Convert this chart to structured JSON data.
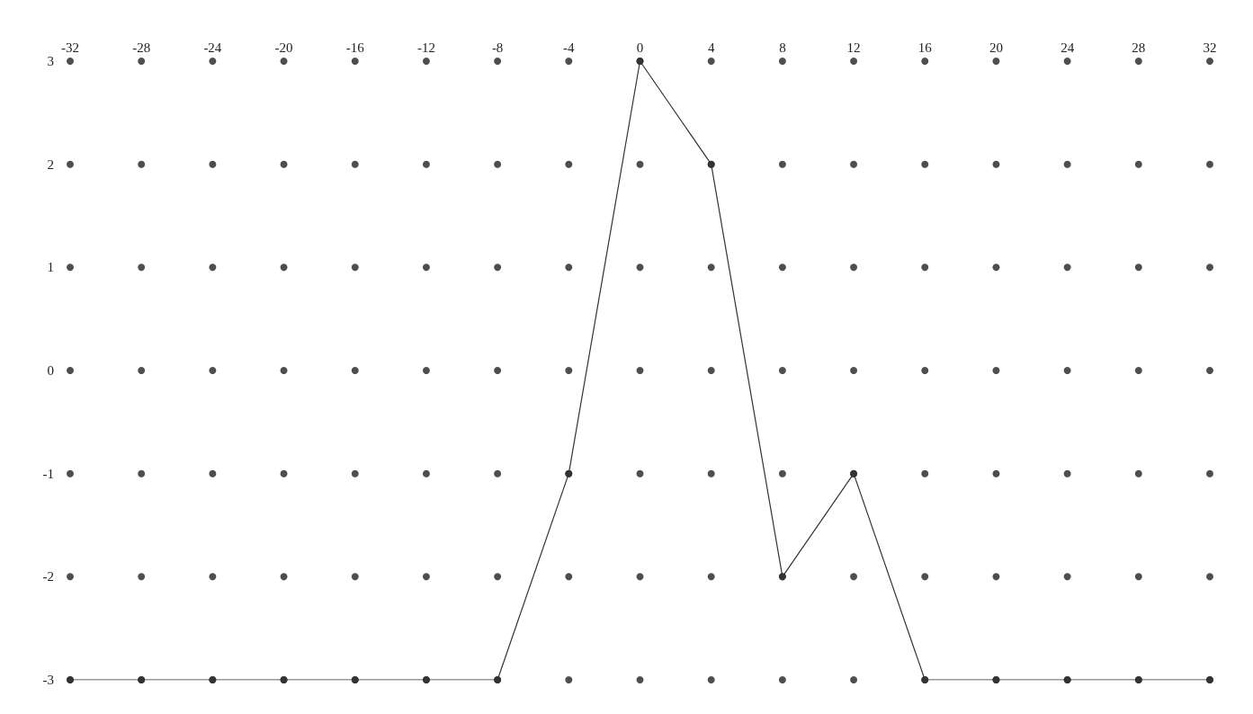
{
  "chart_data": {
    "type": "line",
    "x": [
      -32,
      -28,
      -24,
      -20,
      -16,
      -12,
      -8,
      -4,
      0,
      4,
      8,
      12,
      16,
      20,
      24,
      28,
      32
    ],
    "series": [
      {
        "type": "scatter",
        "color": "#222222",
        "marker": "circle",
        "x": [
          -32,
          -28,
          -24,
          -20,
          -16,
          -12,
          -8,
          -4,
          0,
          4,
          8,
          12,
          16,
          20,
          24,
          28,
          32,
          -32,
          -28,
          -24,
          -20,
          -16,
          -12,
          -8,
          -4,
          0,
          4,
          8,
          12,
          16,
          20,
          24,
          28,
          32,
          -32,
          -28,
          -24,
          -20,
          -16,
          -12,
          -8,
          -4,
          0,
          4,
          8,
          12,
          16,
          20,
          24,
          28,
          32,
          -32,
          -28,
          -24,
          -20,
          -16,
          -12,
          -8,
          -4,
          0,
          4,
          8,
          12,
          16,
          20,
          24,
          28,
          32,
          -32,
          -28,
          -24,
          -20,
          -16,
          -12,
          -8,
          -4,
          0,
          4,
          8,
          12,
          16,
          20,
          24,
          28,
          32,
          -32,
          -28,
          -24,
          -20,
          -16,
          -12,
          -8,
          -4,
          0,
          4,
          8,
          12,
          16,
          20,
          24,
          28,
          32,
          -32,
          -28,
          -24,
          -20,
          -16,
          -12,
          -8,
          -4,
          0,
          4,
          8,
          12,
          16,
          20,
          24,
          28,
          32
        ],
        "values": [
          3,
          3,
          3,
          3,
          3,
          3,
          3,
          3,
          3,
          3,
          3,
          3,
          3,
          3,
          3,
          3,
          3,
          2,
          2,
          2,
          2,
          2,
          2,
          2,
          2,
          2,
          2,
          2,
          2,
          2,
          2,
          2,
          2,
          2,
          1,
          1,
          1,
          1,
          1,
          1,
          1,
          1,
          1,
          1,
          1,
          1,
          1,
          1,
          1,
          1,
          1,
          0,
          0,
          0,
          0,
          0,
          0,
          0,
          0,
          0,
          0,
          0,
          0,
          0,
          0,
          0,
          0,
          0,
          -1,
          -1,
          -1,
          -1,
          -1,
          -1,
          -1,
          -1,
          -1,
          -1,
          -1,
          -1,
          -1,
          -1,
          -1,
          -1,
          -1,
          -2,
          -2,
          -2,
          -2,
          -2,
          -2,
          -2,
          -2,
          -2,
          -2,
          -2,
          -2,
          -2,
          -2,
          -2,
          -2,
          -2,
          -3,
          -3,
          -3,
          -3,
          -3,
          -3,
          -3,
          -3,
          -3,
          -3,
          -3,
          -3,
          -3,
          -3,
          -3,
          -3,
          -3
        ]
      },
      {
        "color": "#333333",
        "marker": "circle",
        "line_style": "solid",
        "values": [
          -3,
          -3,
          -3,
          -3,
          -3,
          -3,
          -3,
          -1,
          3,
          2,
          -2,
          -1,
          -3,
          -3,
          -3,
          -3,
          -3
        ]
      }
    ],
    "xlim": [
      -32,
      32
    ],
    "xticks": [
      -32,
      -28,
      -24,
      -20,
      -16,
      -12,
      -8,
      -4,
      0,
      4,
      8,
      12,
      16,
      20,
      24,
      28,
      32
    ],
    "ylim": [
      -3,
      3
    ],
    "yticks": [
      -3,
      -2,
      -1,
      0,
      1,
      2,
      3
    ],
    "grid": false
  }
}
